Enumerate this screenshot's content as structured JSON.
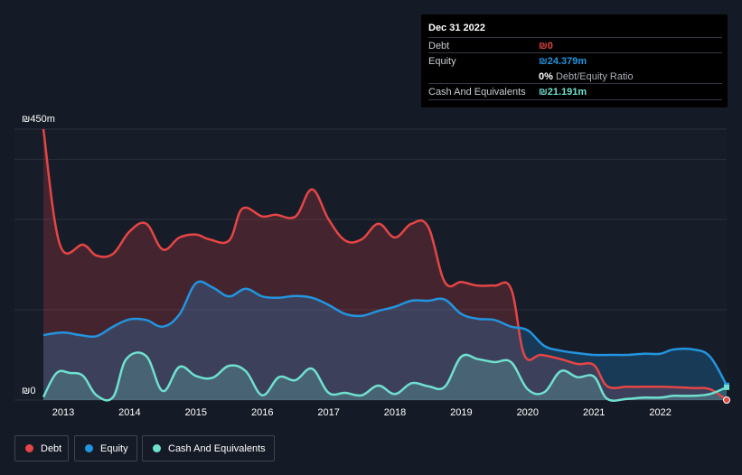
{
  "tooltip": {
    "date": "Dec 31 2022",
    "debt_label": "Debt",
    "debt_value": "₪0",
    "equity_label": "Equity",
    "equity_value": "₪24.379m",
    "ratio_value": "0%",
    "ratio_label": "Debt/Equity Ratio",
    "cash_label": "Cash And Equivalents",
    "cash_value": "₪21.191m"
  },
  "legend": {
    "debt": "Debt",
    "equity": "Equity",
    "cash": "Cash And Equivalents"
  },
  "colors": {
    "debt": "#e64545",
    "equity": "#2394df",
    "cash": "#70e0cf",
    "background": "#151b26"
  },
  "chart_data": {
    "type": "area",
    "title": "",
    "xlabel": "",
    "ylabel": "",
    "y_unit": "₪",
    "ylim": [
      0,
      450
    ],
    "y_tick_labels": [
      "₪450m",
      "₪0"
    ],
    "x_ticks": [
      2013,
      2014,
      2015,
      2016,
      2017,
      2018,
      2019,
      2020,
      2021,
      2022
    ],
    "x_tick_labels": [
      "2013",
      "2014",
      "2015",
      "2016",
      "2017",
      "2018",
      "2019",
      "2020",
      "2021",
      "2022"
    ],
    "xlim": [
      2012.7,
      2023.0
    ],
    "series": [
      {
        "name": "Debt",
        "points": [
          [
            2012.7,
            450
          ],
          [
            2012.95,
            258
          ],
          [
            2013.3,
            258
          ],
          [
            2013.5,
            240
          ],
          [
            2013.75,
            243
          ],
          [
            2014.0,
            280
          ],
          [
            2014.25,
            293
          ],
          [
            2014.5,
            250
          ],
          [
            2014.75,
            270
          ],
          [
            2015.0,
            275
          ],
          [
            2015.2,
            267
          ],
          [
            2015.5,
            265
          ],
          [
            2015.7,
            318
          ],
          [
            2016.0,
            305
          ],
          [
            2016.2,
            308
          ],
          [
            2016.5,
            305
          ],
          [
            2016.75,
            350
          ],
          [
            2017.0,
            300
          ],
          [
            2017.25,
            265
          ],
          [
            2017.5,
            267
          ],
          [
            2017.75,
            293
          ],
          [
            2018.0,
            270
          ],
          [
            2018.25,
            293
          ],
          [
            2018.5,
            288
          ],
          [
            2018.75,
            196
          ],
          [
            2019.0,
            196
          ],
          [
            2019.25,
            190
          ],
          [
            2019.5,
            190
          ],
          [
            2019.75,
            185
          ],
          [
            2019.95,
            75
          ],
          [
            2020.2,
            75
          ],
          [
            2020.5,
            68
          ],
          [
            2020.75,
            60
          ],
          [
            2021.0,
            58
          ],
          [
            2021.2,
            23
          ],
          [
            2021.5,
            22
          ],
          [
            2021.75,
            22
          ],
          [
            2022.0,
            22
          ],
          [
            2022.5,
            20
          ],
          [
            2022.75,
            18
          ],
          [
            2023.0,
            0
          ]
        ]
      },
      {
        "name": "Equity",
        "points": [
          [
            2012.7,
            108
          ],
          [
            2013.0,
            112
          ],
          [
            2013.25,
            108
          ],
          [
            2013.5,
            106
          ],
          [
            2013.75,
            122
          ],
          [
            2014.0,
            134
          ],
          [
            2014.25,
            133
          ],
          [
            2014.5,
            122
          ],
          [
            2014.75,
            142
          ],
          [
            2015.0,
            194
          ],
          [
            2015.25,
            187
          ],
          [
            2015.5,
            172
          ],
          [
            2015.75,
            185
          ],
          [
            2016.0,
            172
          ],
          [
            2016.25,
            170
          ],
          [
            2016.5,
            173
          ],
          [
            2016.75,
            170
          ],
          [
            2017.0,
            158
          ],
          [
            2017.25,
            143
          ],
          [
            2017.5,
            140
          ],
          [
            2017.75,
            148
          ],
          [
            2018.0,
            155
          ],
          [
            2018.25,
            165
          ],
          [
            2018.5,
            165
          ],
          [
            2018.75,
            167
          ],
          [
            2019.0,
            143
          ],
          [
            2019.25,
            135
          ],
          [
            2019.5,
            133
          ],
          [
            2019.75,
            122
          ],
          [
            2020.0,
            116
          ],
          [
            2020.25,
            90
          ],
          [
            2020.5,
            82
          ],
          [
            2020.75,
            78
          ],
          [
            2021.0,
            75
          ],
          [
            2021.25,
            75
          ],
          [
            2021.5,
            75
          ],
          [
            2021.75,
            77
          ],
          [
            2022.0,
            77
          ],
          [
            2022.2,
            84
          ],
          [
            2022.5,
            84
          ],
          [
            2022.75,
            72
          ],
          [
            2023.0,
            24.4
          ]
        ]
      },
      {
        "name": "Cash And Equivalents",
        "points": [
          [
            2012.7,
            5
          ],
          [
            2012.9,
            45
          ],
          [
            2013.1,
            45
          ],
          [
            2013.3,
            40
          ],
          [
            2013.5,
            8
          ],
          [
            2013.75,
            5
          ],
          [
            2013.95,
            68
          ],
          [
            2014.25,
            73
          ],
          [
            2014.5,
            15
          ],
          [
            2014.75,
            55
          ],
          [
            2015.0,
            40
          ],
          [
            2015.25,
            37
          ],
          [
            2015.5,
            57
          ],
          [
            2015.75,
            48
          ],
          [
            2016.0,
            8
          ],
          [
            2016.25,
            38
          ],
          [
            2016.5,
            33
          ],
          [
            2016.75,
            52
          ],
          [
            2017.0,
            12
          ],
          [
            2017.25,
            12
          ],
          [
            2017.5,
            8
          ],
          [
            2017.75,
            24
          ],
          [
            2018.0,
            10
          ],
          [
            2018.25,
            28
          ],
          [
            2018.5,
            23
          ],
          [
            2018.75,
            22
          ],
          [
            2019.0,
            72
          ],
          [
            2019.25,
            68
          ],
          [
            2019.5,
            63
          ],
          [
            2019.75,
            63
          ],
          [
            2020.0,
            18
          ],
          [
            2020.25,
            13
          ],
          [
            2020.5,
            48
          ],
          [
            2020.75,
            38
          ],
          [
            2021.0,
            39
          ],
          [
            2021.2,
            2
          ],
          [
            2021.5,
            2
          ],
          [
            2021.75,
            4
          ],
          [
            2022.0,
            4
          ],
          [
            2022.2,
            7
          ],
          [
            2022.5,
            7
          ],
          [
            2022.75,
            10
          ],
          [
            2023.0,
            21.2
          ]
        ]
      }
    ],
    "last_points": {
      "debt": 0,
      "equity": 24.379,
      "cash": 21.191
    }
  }
}
